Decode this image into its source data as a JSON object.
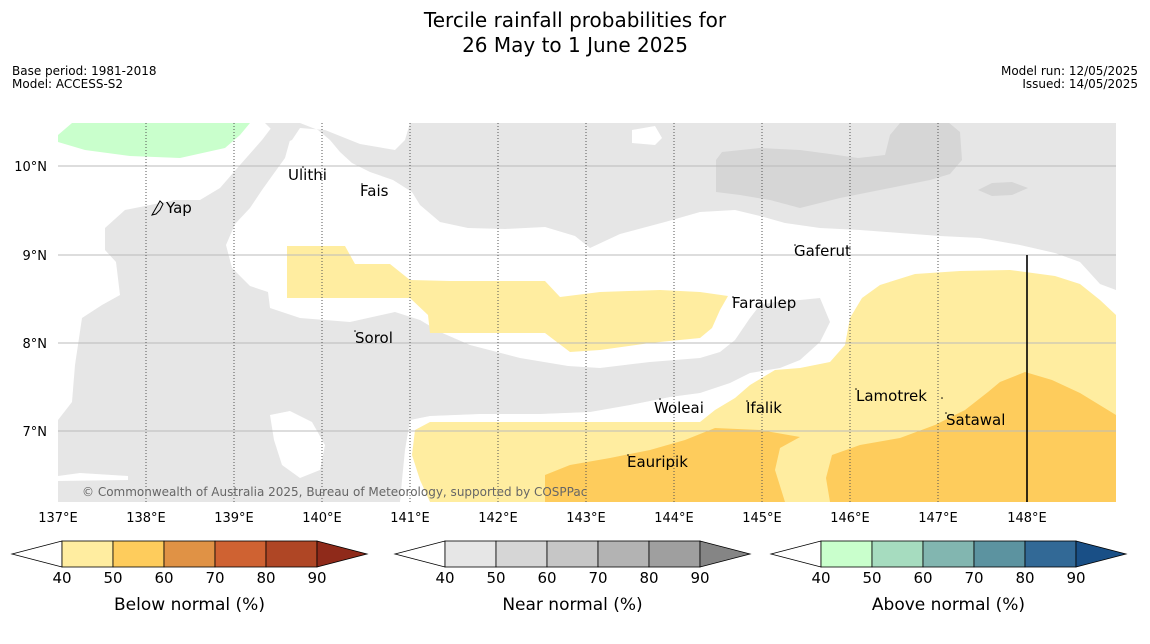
{
  "header": {
    "title_line1": "Tercile rainfall probabilities for",
    "title_line2": "26 May to 1 June 2025",
    "base_period": "Base period: 1981-2018",
    "model": "Model: ACCESS-S2",
    "model_run": "Model run: 12/05/2025",
    "issued": "Issued: 14/05/2025"
  },
  "map": {
    "copyright": "© Commonwealth of Australia 2025, Bureau of Meteorology, supported by COSPPac",
    "lat_labels": [
      "10°N",
      "9°N",
      "8°N",
      "7°N"
    ],
    "lon_labels": [
      "137°E",
      "138°E",
      "139°E",
      "140°E",
      "141°E",
      "142°E",
      "143°E",
      "144°E",
      "145°E",
      "146°E",
      "147°E",
      "148°E"
    ],
    "places": [
      "Yap",
      "Ulithi",
      "Fais",
      "Gaferut",
      "Faraulep",
      "Sorol",
      "Woleai",
      "Ifalik",
      "Lamotrek",
      "Satawal",
      "Eauripik"
    ]
  },
  "legends": [
    {
      "label": "Below normal (%)",
      "ticks": [
        "40",
        "50",
        "60",
        "70",
        "80",
        "90"
      ],
      "colors": [
        "#ffeda0",
        "#fecc5c",
        "#e09245",
        "#cf6232",
        "#af4625",
        "#8f2a1a"
      ]
    },
    {
      "label": "Near normal (%)",
      "ticks": [
        "40",
        "50",
        "60",
        "70",
        "80",
        "90"
      ],
      "colors": [
        "#e6e6e6",
        "#d6d6d6",
        "#c6c6c6",
        "#b3b3b3",
        "#9f9f9f",
        "#858585"
      ]
    },
    {
      "label": "Above normal (%)",
      "ticks": [
        "40",
        "50",
        "60",
        "70",
        "80",
        "90"
      ],
      "colors": [
        "#c9ffcc",
        "#a6dcbf",
        "#82b6b0",
        "#5c93a0",
        "#326996",
        "#194f86"
      ]
    }
  ]
}
